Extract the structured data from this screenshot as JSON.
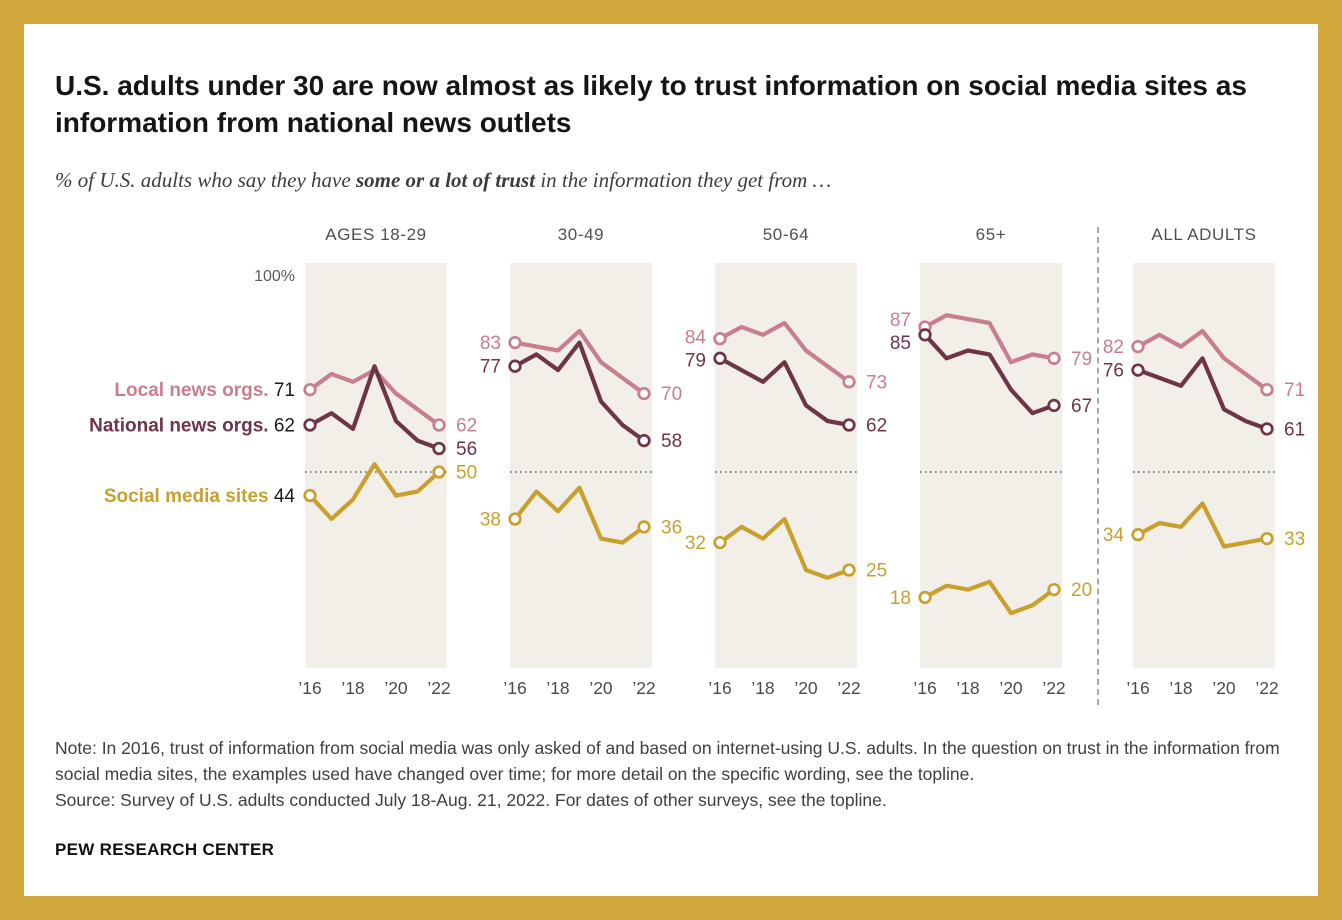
{
  "header": {
    "title": "U.S. adults under 30 are now almost as likely to trust information on social media sites as information from national news outlets",
    "subtitle_prefix": "% of U.S. adults who say they have ",
    "subtitle_bold": "some or a lot of trust",
    "subtitle_suffix": " in the information they get from …"
  },
  "colors": {
    "background_gold": "#d3a83d",
    "panel_background": "#f1efe8",
    "local_news": "#c87e8e",
    "national_news": "#6f3448",
    "social_media": "#c99f2e",
    "reference_line": "#5f5f5f"
  },
  "chart_data": {
    "type": "line",
    "x": [
      2016,
      2017,
      2018,
      2019,
      2020,
      2021,
      2022
    ],
    "x_tick_labels": [
      "’16",
      "’18",
      "’20",
      "’22"
    ],
    "x_tick_years": [
      2016,
      2018,
      2020,
      2022
    ],
    "ylim": [
      0,
      103
    ],
    "y_top_label": "100%",
    "reference_line_y": 50,
    "grid": "off",
    "legend_position": "left-of-first-panel",
    "series_meta": [
      {
        "key": "local",
        "name": "Local news orgs.",
        "color": "#c87e8e"
      },
      {
        "key": "national",
        "name": "National news orgs.",
        "color": "#6f3448"
      },
      {
        "key": "social",
        "name": "Social media sites",
        "color": "#c99f2e"
      }
    ],
    "panels": [
      {
        "label": "AGES 18-29",
        "series": {
          "local": [
            71,
            75,
            73,
            76,
            70,
            66,
            62
          ],
          "national": [
            62,
            65,
            61,
            77,
            63,
            58,
            56
          ],
          "social": [
            44,
            38,
            43,
            52,
            44,
            45,
            50
          ]
        }
      },
      {
        "label": "30-49",
        "series": {
          "local": [
            83,
            82,
            81,
            86,
            78,
            74,
            70
          ],
          "national": [
            77,
            80,
            76,
            83,
            68,
            62,
            58
          ],
          "social": [
            38,
            45,
            40,
            46,
            33,
            32,
            36
          ]
        }
      },
      {
        "label": "50-64",
        "series": {
          "local": [
            84,
            87,
            85,
            88,
            81,
            77,
            73
          ],
          "national": [
            79,
            76,
            73,
            78,
            67,
            63,
            62
          ],
          "social": [
            32,
            36,
            33,
            38,
            25,
            23,
            25
          ]
        }
      },
      {
        "label": "65+",
        "series": {
          "local": [
            87,
            90,
            89,
            88,
            78,
            80,
            79
          ],
          "national": [
            85,
            79,
            81,
            80,
            71,
            65,
            67
          ],
          "social": [
            18,
            21,
            20,
            22,
            14,
            16,
            20
          ]
        }
      },
      {
        "label": "ALL ADULTS",
        "series": {
          "local": [
            82,
            85,
            82,
            86,
            79,
            75,
            71
          ],
          "national": [
            76,
            74,
            72,
            79,
            66,
            63,
            61
          ],
          "social": [
            34,
            37,
            36,
            42,
            31,
            32,
            33
          ]
        }
      }
    ]
  },
  "footer": {
    "note": "Note: In 2016, trust of information from social media was only asked of and based on internet-using U.S. adults. In the question on trust in the information from social media sites, the examples used have changed over time; for more detail on the specific wording, see the topline.",
    "source": "Source: Survey of U.S. adults conducted July 18-Aug. 21, 2022. For dates of other surveys, see the topline.",
    "brand": "PEW RESEARCH CENTER"
  }
}
